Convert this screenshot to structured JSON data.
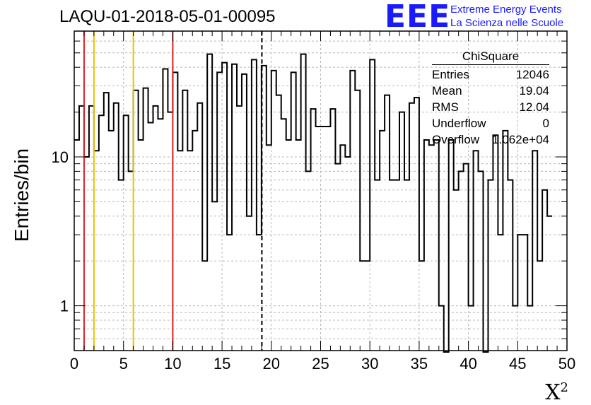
{
  "title": "LAQU-01-2018-05-01-00095",
  "logo": {
    "mark": "EEE",
    "line1": "Extreme Energy Events",
    "line2": "La Scienza nelle Scuole",
    "color": "#1a1aff"
  },
  "stats": {
    "name": "ChiSquare",
    "rows": [
      {
        "label": "Entries",
        "value": "12046"
      },
      {
        "label": "Mean",
        "value": "19.04"
      },
      {
        "label": "RMS",
        "value": "12.04"
      },
      {
        "label": "Underflow",
        "value": "0"
      },
      {
        "label": "Overflow",
        "value": "1.062e+04"
      }
    ]
  },
  "chart_data": {
    "type": "histogram",
    "xlabel": "X",
    "xlabel_sup": "2",
    "ylabel": "Entries/bin",
    "xlim": [
      0,
      50
    ],
    "ylim": [
      0.5,
      70
    ],
    "yscale": "log",
    "grid": true,
    "bin_width": 0.5,
    "x_ticks": [
      0,
      5,
      10,
      15,
      20,
      25,
      30,
      35,
      40,
      45,
      50
    ],
    "y_tick_labels": [
      {
        "value": 1,
        "label": "1"
      },
      {
        "value": 10,
        "label": "10"
      }
    ],
    "values": [
      13,
      22,
      10,
      22,
      11,
      19,
      27,
      15,
      23,
      7,
      19,
      8,
      28,
      13,
      29,
      17,
      22,
      18,
      39,
      20,
      37,
      11,
      28,
      11,
      15,
      23,
      2,
      49,
      5,
      37,
      43,
      3,
      42,
      22,
      36,
      4,
      45,
      3,
      41,
      12,
      38,
      26,
      18,
      13,
      37,
      13,
      49,
      8,
      21,
      16,
      16,
      16,
      21,
      9,
      12,
      10,
      38,
      28,
      2,
      2,
      45,
      7,
      15,
      26,
      7,
      7,
      20,
      7,
      23,
      25,
      2,
      13,
      12,
      13,
      1,
      0,
      13,
      6,
      8,
      9,
      1,
      11,
      8,
      0,
      7,
      14,
      3,
      15,
      7,
      1,
      3,
      3,
      1,
      11,
      2,
      6,
      4
    ],
    "vlines": [
      {
        "x": 1,
        "color": "#e02020",
        "style": "solid"
      },
      {
        "x": 2,
        "color": "#f0c000",
        "style": "solid"
      },
      {
        "x": 6,
        "color": "#f0c000",
        "style": "solid"
      },
      {
        "x": 10,
        "color": "#e02020",
        "style": "solid"
      },
      {
        "x": 19.04,
        "color": "#000000",
        "style": "dashed"
      }
    ]
  }
}
